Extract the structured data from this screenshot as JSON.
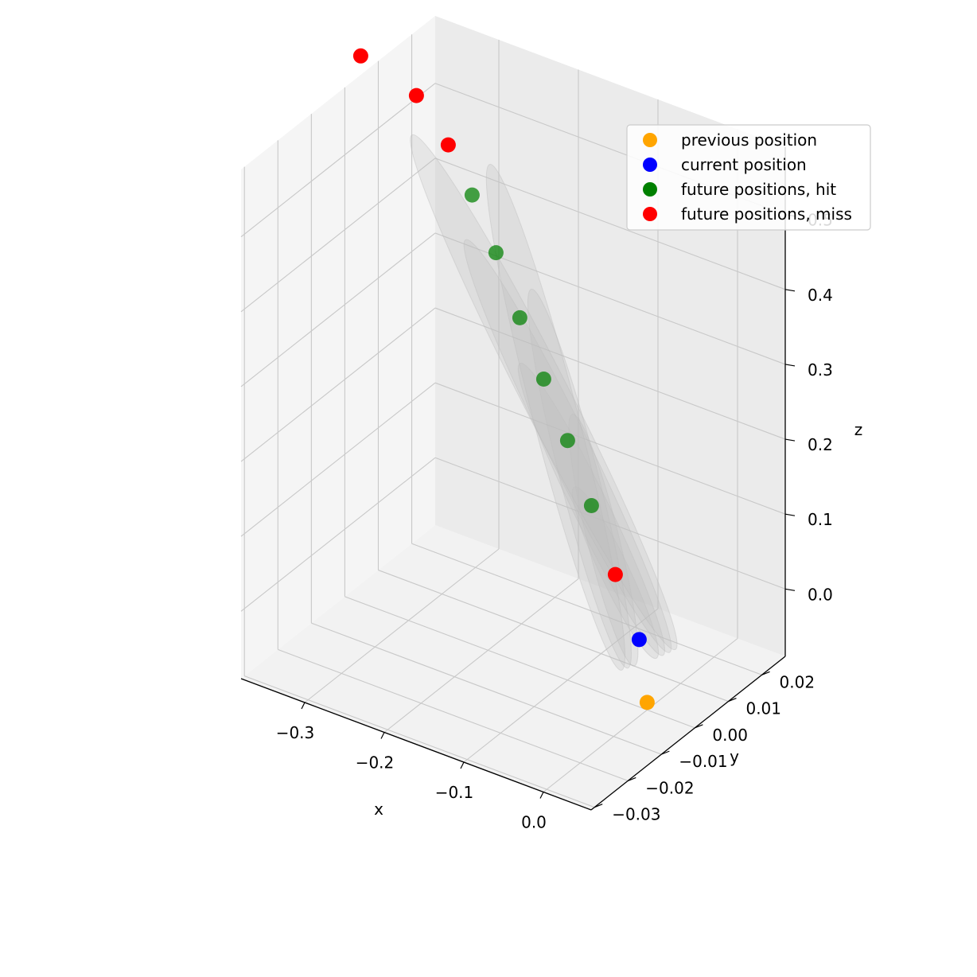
{
  "chart_data": {
    "type": "scatter",
    "projection": "3d",
    "title": "",
    "xlabel": "x",
    "ylabel": "y",
    "zlabel": "z",
    "xlim": [
      -0.38,
      0.06
    ],
    "ylim": [
      -0.031,
      0.027
    ],
    "zlim": [
      -0.09,
      0.59
    ],
    "x_ticks": [
      -0.3,
      -0.2,
      -0.1,
      0.0
    ],
    "x_tick_labels": [
      "−0.3",
      "−0.2",
      "−0.1",
      "0.0"
    ],
    "y_ticks": [
      -0.03,
      -0.02,
      -0.01,
      0.0,
      0.01,
      0.02
    ],
    "y_tick_labels": [
      "−0.03",
      "−0.02",
      "−0.01",
      "0.00",
      "0.01",
      "0.02"
    ],
    "z_ticks": [
      0.0,
      0.1,
      0.2,
      0.3,
      0.4,
      0.5
    ],
    "z_tick_labels": [
      "0.0",
      "0.1",
      "0.2",
      "0.3",
      "0.4",
      "0.5"
    ],
    "grid": true,
    "legend_position": "top-right",
    "series": [
      {
        "name": "previous position",
        "color": "#ffa500",
        "points": [
          {
            "x": 0.0,
            "y": 0.0,
            "z": -0.08
          }
        ]
      },
      {
        "name": "current position",
        "color": "#0000ff",
        "points": [
          {
            "x": -0.01,
            "y": 0.0,
            "z": 0.0
          }
        ]
      },
      {
        "name": "future positions, hit",
        "color": "#008000",
        "points": [
          {
            "x": -0.07,
            "y": 0.0,
            "z": 0.155
          },
          {
            "x": -0.1,
            "y": 0.0,
            "z": 0.23
          },
          {
            "x": -0.13,
            "y": 0.0,
            "z": 0.3
          },
          {
            "x": -0.16,
            "y": 0.0,
            "z": 0.37
          },
          {
            "x": -0.19,
            "y": 0.0,
            "z": 0.445
          },
          {
            "x": -0.22,
            "y": 0.0,
            "z": 0.51
          }
        ]
      },
      {
        "name": "future positions, miss",
        "color": "#ff0000",
        "points": [
          {
            "x": -0.04,
            "y": 0.0,
            "z": 0.075
          },
          {
            "x": -0.25,
            "y": 0.0,
            "z": 0.565
          },
          {
            "x": -0.29,
            "y": 0.0,
            "z": 0.615
          },
          {
            "x": -0.36,
            "y": 0.0,
            "z": 0.64
          }
        ]
      }
    ],
    "ellipsoid_color": "#c0c0c0"
  }
}
